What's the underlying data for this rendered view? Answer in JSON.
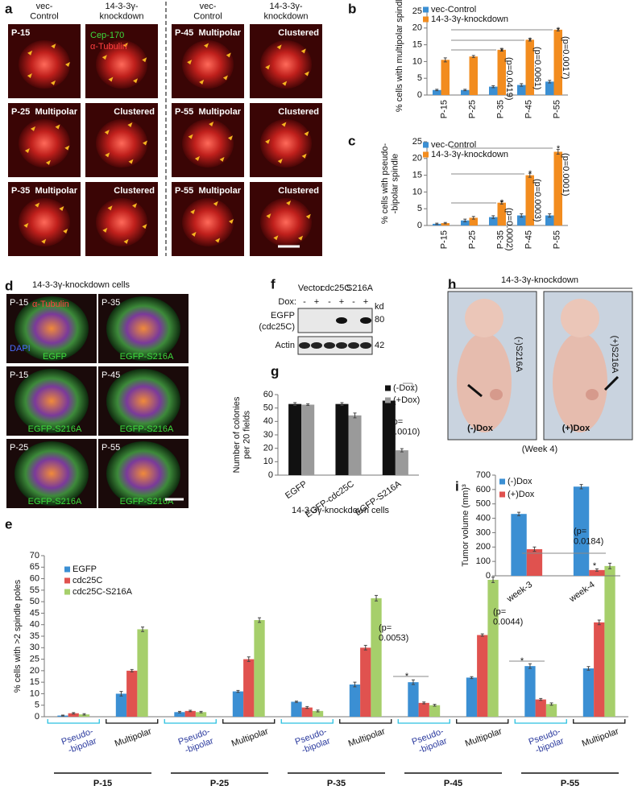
{
  "panel_labels": [
    "a",
    "b",
    "c",
    "d",
    "e",
    "f",
    "g",
    "h",
    "i"
  ],
  "panel_a": {
    "headers": [
      "vec-\nControl",
      "14-3-3γ-\nknockdown",
      "vec-\nControl",
      "14-3-3γ-\nknockdown"
    ],
    "stain_labels": [
      "Cep-170",
      "α-Tubulin"
    ],
    "cells": [
      [
        "P-15"
      ],
      [],
      [
        "P-45",
        "Multipolar"
      ],
      [
        "Clustered"
      ],
      [
        "P-25",
        "Multipolar"
      ],
      [
        "Clustered"
      ],
      [
        "P-55",
        "Multipolar"
      ],
      [
        "Clustered"
      ],
      [
        "P-35",
        "Multipolar"
      ],
      [
        "Clustered"
      ],
      [
        "P-55",
        "Multipolar"
      ],
      [
        "Clustered"
      ]
    ]
  },
  "panel_d": {
    "title": "14-3-3γ-knockdown cells",
    "stains": [
      "α-Tubulin",
      "DAPI"
    ],
    "cells": [
      [
        "P-15",
        "EGFP"
      ],
      [
        "P-35",
        "EGFP-S216A"
      ],
      [
        "P-15",
        "EGFP-S216A"
      ],
      [
        "P-45",
        "EGFP-S216A"
      ],
      [
        "P-25",
        "EGFP-S216A"
      ],
      [
        "P-55",
        "EGFP-S216A"
      ]
    ]
  },
  "panel_f": {
    "lanes": [
      "Vector",
      "cdc25C",
      "S216A"
    ],
    "dox_label": "Dox:",
    "dox": [
      "-",
      "+",
      "-",
      "+",
      "-",
      "+"
    ],
    "kd_label": "kd",
    "rows": [
      {
        "name": "EGFP",
        "sub": "(cdc25C)",
        "kd": "80"
      },
      {
        "name": "Actin",
        "kd": "42"
      }
    ]
  },
  "panel_h": {
    "title": "14-3-3γ-knockdown",
    "caption": "(Week 4)",
    "images": [
      {
        "tag": "(-)S216A",
        "dox": "(-)Dox"
      },
      {
        "tag": "(+)S216A",
        "dox": "(+)Dox"
      }
    ]
  },
  "chart_data": [
    {
      "type": "bar",
      "ylabel": "% cells with multipolar spindle",
      "categories": [
        "P-15",
        "P-25",
        "P-35",
        "P-45",
        "P-55"
      ],
      "series": [
        {
          "name": "vec-Control",
          "color": "#3b8fd3",
          "values": [
            1.5,
            1.5,
            2.5,
            3,
            4
          ],
          "errors": [
            0.2,
            0.2,
            0.3,
            0.4,
            0.4
          ]
        },
        {
          "name": "14-3-3γ-knockdown",
          "color": "#f28c1f",
          "values": [
            10.5,
            11.5,
            13.5,
            16.5,
            19.5
          ],
          "errors": [
            0.6,
            0.3,
            0.4,
            0.4,
            0.4
          ]
        }
      ],
      "ylim": [
        0,
        25
      ],
      "yticks": [
        0,
        5,
        10,
        15,
        20,
        25
      ],
      "annotations": [
        "(p=0.0419)",
        "(p=0.0061)",
        "(p=0.0017)"
      ],
      "significance_mark": "*"
    },
    {
      "type": "bar",
      "ylabel": "% cells with pseudo-\n-bipolar spindle",
      "categories": [
        "P-15",
        "P-25",
        "P-35",
        "P-45",
        "P-55"
      ],
      "series": [
        {
          "name": "vec-Control",
          "color": "#3b8fd3",
          "values": [
            0.5,
            1.5,
            2.5,
            3,
            3
          ],
          "errors": [
            0.2,
            0.4,
            0.4,
            0.5,
            0.5
          ]
        },
        {
          "name": "14-3-3γ-knockdown",
          "color": "#f28c1f",
          "values": [
            0.7,
            2.3,
            6.8,
            15,
            22
          ],
          "errors": [
            0.2,
            0.4,
            0.4,
            0.6,
            0.7
          ]
        }
      ],
      "ylim": [
        0,
        25
      ],
      "yticks": [
        0,
        5,
        10,
        15,
        20,
        25
      ],
      "annotations": [
        "(p=0.0002)",
        "(p=0.0003)",
        "(p=0.0001)"
      ],
      "significance_mark": "*"
    },
    {
      "type": "bar",
      "ylabel": "% cells with >2 spindle poles",
      "groups": [
        "P-15",
        "P-25",
        "P-35",
        "P-45",
        "P-55"
      ],
      "categories": [
        "Pseudo-\n-bipolar",
        "Multipolar",
        "Pseudo-\n-bipolar",
        "Multipolar",
        "Pseudo-\n-bipolar",
        "Multipolar",
        "Pseudo-\n-bipolar",
        "Multipolar",
        "Pseudo-\n-bipolar",
        "Multipolar"
      ],
      "series": [
        {
          "name": "EGFP",
          "color": "#3b8fd3",
          "values": [
            0.5,
            10,
            2,
            11,
            6.5,
            14,
            15,
            17,
            22,
            21
          ],
          "errors": [
            0.2,
            1,
            0.3,
            0.4,
            0.3,
            1,
            1,
            0.4,
            1,
            0.8
          ]
        },
        {
          "name": "cdc25C",
          "color": "#e0524f",
          "values": [
            1.5,
            20,
            2.5,
            25,
            4,
            30,
            6,
            35.5,
            7.5,
            41
          ],
          "errors": [
            0.3,
            0.5,
            0.3,
            1,
            0.4,
            1,
            0.4,
            0.5,
            0.4,
            1
          ]
        },
        {
          "name": "cdc25C-S216A",
          "color": "#a6cf6b",
          "values": [
            1,
            38,
            2,
            42,
            2.5,
            51.5,
            5,
            59.5,
            5.5,
            65.5
          ],
          "errors": [
            0.3,
            1,
            0.3,
            1,
            0.4,
            1.2,
            0.4,
            1.2,
            0.5,
            1.2
          ]
        }
      ],
      "ylim": [
        0,
        70
      ],
      "yticks": [
        0,
        5,
        10,
        15,
        20,
        25,
        30,
        35,
        40,
        45,
        50,
        55,
        60,
        65,
        70
      ],
      "annotations": [
        "(p=\n0.0053)",
        "(p=\n0.0044)"
      ],
      "significance_mark": "*"
    },
    {
      "type": "bar",
      "ylabel": "Number of colonies\nper 20 fields",
      "xlabel": "14-3-3γ-knockdown cells",
      "categories": [
        "EGFP",
        "EGFP-cdc25C",
        "EGFP-S216A"
      ],
      "series": [
        {
          "name": "(-Dox)",
          "color": "#111111",
          "values": [
            53,
            53,
            55.5
          ],
          "errors": [
            1,
            1,
            1
          ]
        },
        {
          "name": "(+Dox)",
          "color": "#9a9a9a",
          "values": [
            52.5,
            44.5,
            18.5
          ],
          "errors": [
            0.6,
            1.8,
            1.2
          ]
        }
      ],
      "ylim": [
        0,
        60
      ],
      "yticks": [
        0,
        10,
        20,
        30,
        40,
        50,
        60
      ],
      "annotations": [
        "(p=\n0.0010)"
      ],
      "significance_mark": "*"
    },
    {
      "type": "bar",
      "ylabel": "Tumor volume (mm)³",
      "categories": [
        "week-3",
        "week-4"
      ],
      "series": [
        {
          "name": "(-)Dox",
          "color": "#3b8fd3",
          "values": [
            430,
            620
          ],
          "errors": [
            12,
            15
          ]
        },
        {
          "name": "(+)Dox",
          "color": "#e0524f",
          "values": [
            185,
            40
          ],
          "errors": [
            15,
            8
          ]
        }
      ],
      "ylim": [
        0,
        700
      ],
      "yticks": [
        0,
        100,
        200,
        300,
        400,
        500,
        600,
        700
      ],
      "annotations": [
        "(p=\n0.0184)"
      ],
      "significance_mark": "*"
    }
  ]
}
